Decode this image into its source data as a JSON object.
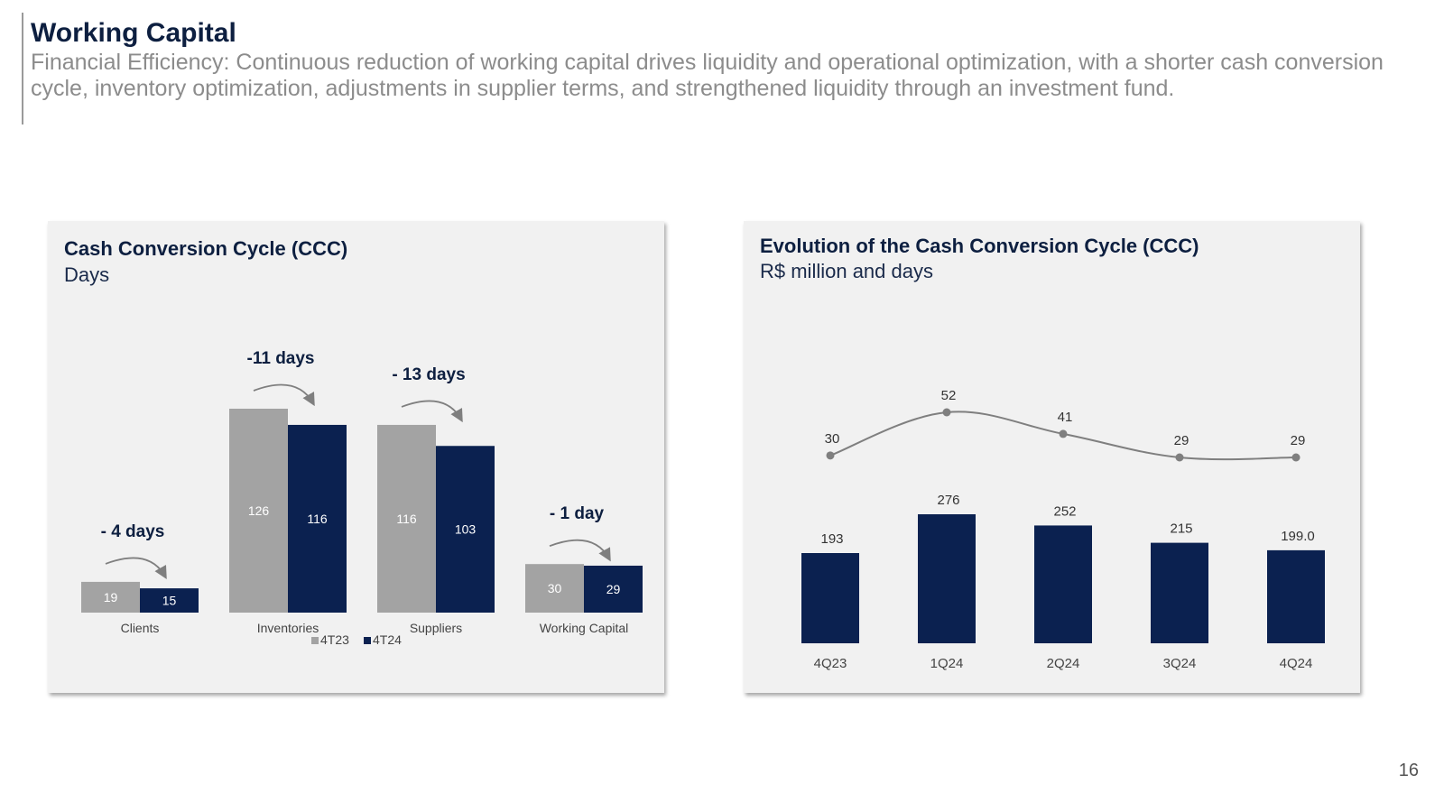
{
  "header": {
    "title": "Working Capital",
    "subtitle": "Financial Efficiency: Continuous reduction of working capital drives liquidity and operational optimization, with a shorter cash conversion cycle, inventory optimization, adjustments in supplier terms, and strengthened liquidity through an investment fund."
  },
  "colors": {
    "navy": "#0b2150",
    "gray": "#a3a3a3",
    "line": "#7f7f7f"
  },
  "chart_data": [
    {
      "type": "bar",
      "title": "Cash Conversion Cycle (CCC)",
      "subtitle": "Days",
      "categories": [
        "Clients",
        "Inventories",
        "Suppliers",
        "Working Capital"
      ],
      "series": [
        {
          "name": "4T23",
          "values": [
            19,
            126,
            116,
            30
          ]
        },
        {
          "name": "4T24",
          "values": [
            15,
            116,
            103,
            29
          ]
        }
      ],
      "annotations": [
        "- 4 days",
        "-11 days",
        "- 13 days",
        "- 1 day"
      ],
      "ylim": [
        0,
        140
      ]
    },
    {
      "type": "bar+line",
      "title": "Evolution of the Cash Conversion Cycle (CCC)",
      "subtitle": "R$ million and days",
      "categories": [
        "4Q23",
        "1Q24",
        "2Q24",
        "3Q24",
        "4Q24"
      ],
      "bar_series": {
        "name": "R$ million",
        "values": [
          193,
          276,
          252,
          215,
          199.0
        ],
        "labels": [
          "193",
          "276",
          "252",
          "215",
          "199.0"
        ]
      },
      "line_series": {
        "name": "days",
        "values": [
          30,
          52,
          41,
          29,
          29
        ],
        "labels": [
          "30",
          "52",
          "41",
          "29",
          "29"
        ]
      }
    }
  ],
  "footer": {
    "page_number": "16"
  }
}
